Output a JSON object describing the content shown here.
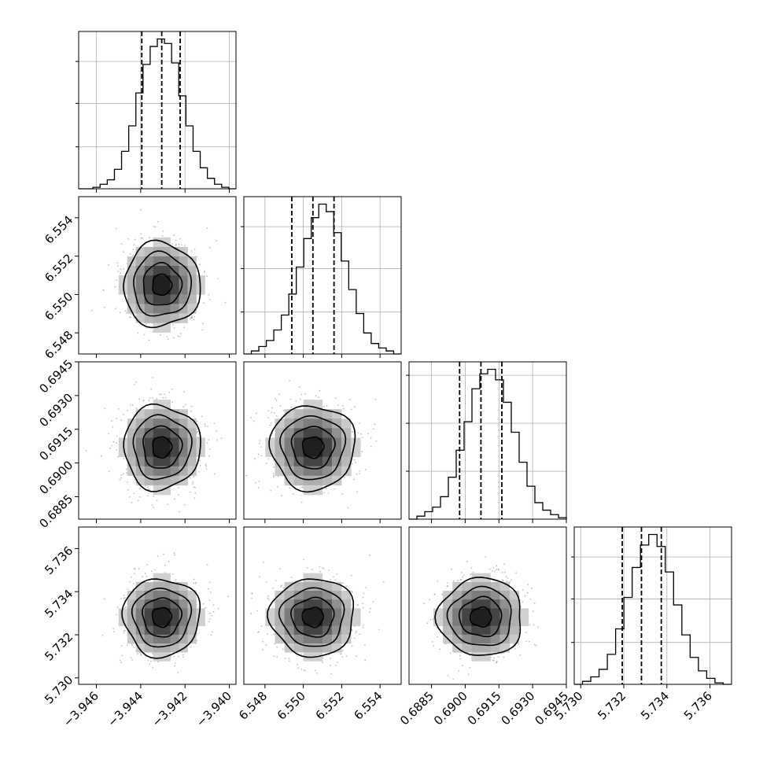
{
  "chart_data": {
    "type": "corner",
    "parameters": [
      {
        "range": [
          -3.9468,
          -3.9397
        ],
        "ticks": [
          -3.946,
          -3.944,
          -3.942,
          -3.94
        ],
        "tick_labels": [
          "−3.946",
          "−3.944",
          "−3.942",
          "−3.940"
        ],
        "quantiles": [
          -3.94395,
          -3.94305,
          -3.94222
        ],
        "hist": [
          0.0,
          0.0,
          0.01,
          0.03,
          0.06,
          0.13,
          0.25,
          0.42,
          0.64,
          0.83,
          0.95,
          1.0,
          0.97,
          0.84,
          0.62,
          0.42,
          0.25,
          0.14,
          0.07,
          0.03,
          0.01,
          0.0
        ],
        "hist_ticks": [
          0.28,
          0.57,
          0.85
        ]
      },
      {
        "range": [
          6.5469,
          6.5551
        ],
        "ticks": [
          6.548,
          6.55,
          6.552,
          6.554
        ],
        "tick_labels": [
          "6.548",
          "6.550",
          "6.552",
          "6.554"
        ],
        "quantiles": [
          6.5494,
          6.5505,
          6.5516
        ],
        "hist": [
          0.0,
          0.02,
          0.05,
          0.09,
          0.16,
          0.26,
          0.4,
          0.58,
          0.77,
          0.91,
          1.0,
          0.95,
          0.81,
          0.62,
          0.43,
          0.27,
          0.14,
          0.07,
          0.04,
          0.02,
          0.0
        ],
        "hist_ticks": [
          0.28,
          0.57,
          0.85
        ]
      },
      {
        "range": [
          0.6875,
          0.6945
        ],
        "ticks": [
          0.6885,
          0.69,
          0.6915,
          0.693,
          0.6945
        ],
        "tick_labels": [
          "0.6885",
          "0.6900",
          "0.6915",
          "0.6930",
          "0.6945"
        ],
        "y_tick_labels": [
          "0.6885",
          "0.6900",
          "0.6915",
          "0.6930",
          "0.6945"
        ],
        "quantiles": [
          0.68975,
          0.6907,
          0.69163
        ],
        "hist": [
          0.0,
          0.02,
          0.05,
          0.08,
          0.15,
          0.28,
          0.46,
          0.65,
          0.87,
          0.97,
          1.0,
          0.93,
          0.78,
          0.58,
          0.38,
          0.22,
          0.11,
          0.06,
          0.03,
          0.01
        ],
        "hist_ticks": [
          0.32,
          0.64,
          0.96
        ]
      },
      {
        "range": [
          5.7297,
          5.737
        ],
        "ticks": [
          5.73,
          5.732,
          5.734,
          5.736
        ],
        "tick_labels": [
          "5.730",
          "5.732",
          "5.734",
          "5.736"
        ],
        "quantiles": [
          5.73193,
          5.73282,
          5.73374
        ],
        "hist": [
          0.0,
          0.02,
          0.05,
          0.1,
          0.2,
          0.37,
          0.58,
          0.78,
          0.93,
          1.0,
          0.92,
          0.75,
          0.53,
          0.33,
          0.18,
          0.09,
          0.04,
          0.01,
          0.0
        ],
        "hist_ticks": [
          0.28,
          0.57,
          0.85
        ]
      }
    ],
    "extra_x_tick_label": "0.6945",
    "grid": true,
    "contour_levels": 4
  }
}
